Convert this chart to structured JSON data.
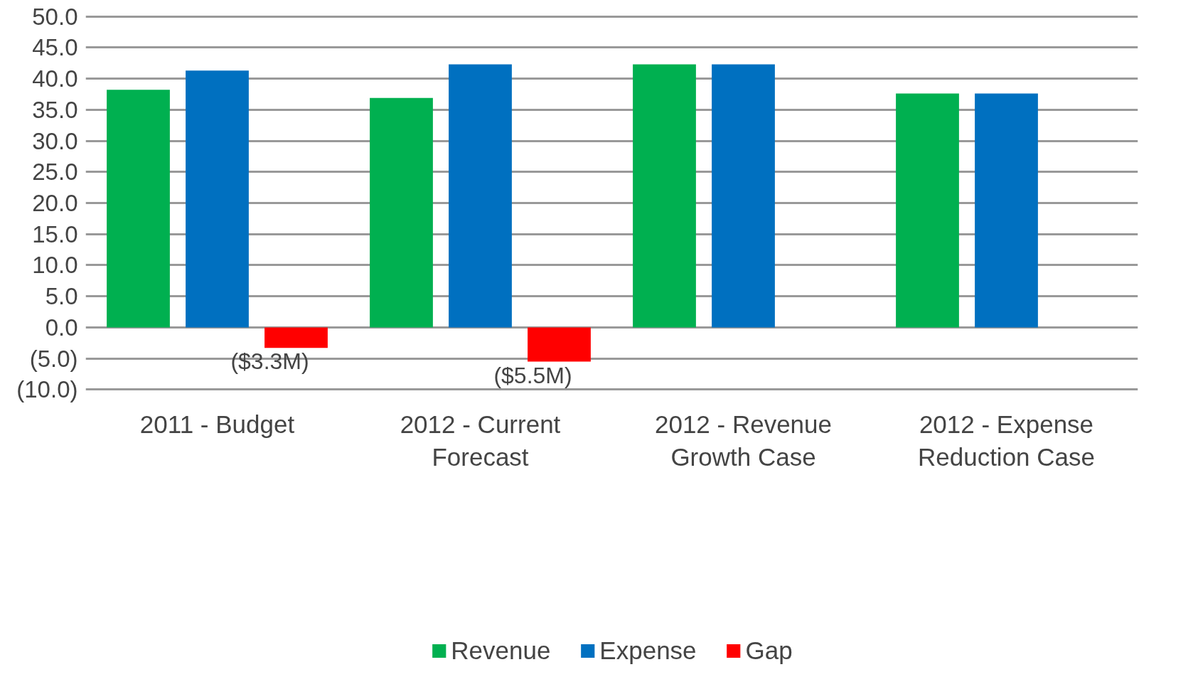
{
  "chart_data": {
    "type": "bar",
    "categories": [
      "2011 - Budget",
      "2012 - Current Forecast",
      "2012 - Revenue Growth Case",
      "2012 - Expense Reduction Case"
    ],
    "series": [
      {
        "name": "Revenue",
        "color": "#00b050",
        "values": [
          38.2,
          36.9,
          42.3,
          37.6
        ]
      },
      {
        "name": "Expense",
        "color": "#0070c0",
        "values": [
          41.3,
          42.3,
          42.3,
          37.6
        ]
      },
      {
        "name": "Gap",
        "color": "#ff0000",
        "values": [
          -3.3,
          -5.5,
          null,
          null
        ],
        "value_labels": [
          "($3.3M)",
          "($5.5M)",
          null,
          null
        ]
      }
    ],
    "ylim": [
      -10,
      50
    ],
    "yticks": [
      {
        "value": -10,
        "label": "(10.0)"
      },
      {
        "value": -5,
        "label": "(5.0)"
      },
      {
        "value": 0,
        "label": "0.0"
      },
      {
        "value": 5,
        "label": "5.0"
      },
      {
        "value": 10,
        "label": "10.0"
      },
      {
        "value": 15,
        "label": "15.0"
      },
      {
        "value": 20,
        "label": "20.0"
      },
      {
        "value": 25,
        "label": "25.0"
      },
      {
        "value": 30,
        "label": "30.0"
      },
      {
        "value": 35,
        "label": "35.0"
      },
      {
        "value": 40,
        "label": "40.0"
      },
      {
        "value": 45,
        "label": "45.0"
      },
      {
        "value": 50,
        "label": "50.0"
      }
    ],
    "grid": "y",
    "legend": "bottom"
  }
}
